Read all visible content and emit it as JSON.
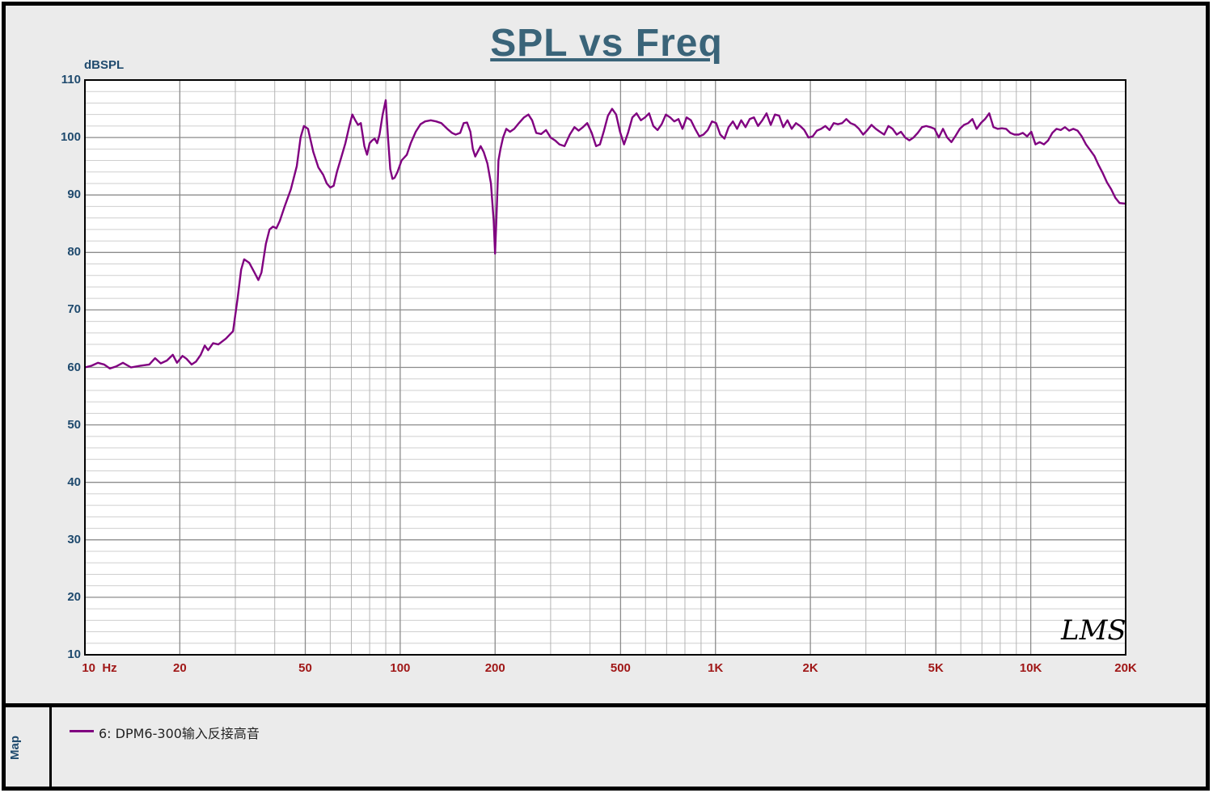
{
  "chart_data": {
    "type": "line",
    "title": "SPL vs Freq",
    "ylabel": "dBSPL",
    "xlabel": "",
    "x_scale": "log",
    "xlim": [
      10,
      20000
    ],
    "ylim": [
      10,
      110
    ],
    "yticks": [
      "110",
      "100",
      "90",
      "80",
      "70",
      "60",
      "50",
      "40",
      "30",
      "20",
      "10"
    ],
    "xticks": [
      {
        "value": 10,
        "label": "10  Hz"
      },
      {
        "value": 20,
        "label": "20"
      },
      {
        "value": 50,
        "label": "50"
      },
      {
        "value": 100,
        "label": "100"
      },
      {
        "value": 200,
        "label": "200"
      },
      {
        "value": 500,
        "label": "500"
      },
      {
        "value": 1000,
        "label": "1K"
      },
      {
        "value": 2000,
        "label": "2K"
      },
      {
        "value": 5000,
        "label": "5K"
      },
      {
        "value": 10000,
        "label": "10K"
      },
      {
        "value": 20000,
        "label": "20K"
      }
    ],
    "grid": true,
    "series": [
      {
        "name": "6: DPM6-300输入反接高音",
        "color": "#800080",
        "points": [
          [
            10,
            60
          ],
          [
            10.5,
            60.3
          ],
          [
            11,
            60.8
          ],
          [
            11.5,
            60.5
          ],
          [
            12,
            59.8
          ],
          [
            12.6,
            60.2
          ],
          [
            13.2,
            60.8
          ],
          [
            14,
            60
          ],
          [
            15,
            60.3
          ],
          [
            16,
            60.5
          ],
          [
            16.7,
            61.6
          ],
          [
            17.4,
            60.7
          ],
          [
            18.2,
            61.2
          ],
          [
            19,
            62.2
          ],
          [
            19.6,
            60.8
          ],
          [
            20.4,
            62
          ],
          [
            21,
            61.5
          ],
          [
            21.8,
            60.5
          ],
          [
            22.5,
            61
          ],
          [
            23.3,
            62.2
          ],
          [
            24,
            63.8
          ],
          [
            24.6,
            63
          ],
          [
            25.5,
            64.2
          ],
          [
            26.5,
            64
          ],
          [
            28,
            65
          ],
          [
            29.5,
            66.3
          ],
          [
            30.5,
            72
          ],
          [
            31.3,
            77
          ],
          [
            32,
            78.8
          ],
          [
            33.2,
            78.2
          ],
          [
            34.5,
            76.5
          ],
          [
            35.5,
            75.2
          ],
          [
            36.3,
            76.5
          ],
          [
            37.5,
            81.5
          ],
          [
            38.5,
            84
          ],
          [
            39.5,
            84.5
          ],
          [
            40.5,
            84.2
          ],
          [
            41.5,
            85.5
          ],
          [
            43,
            88
          ],
          [
            45,
            91
          ],
          [
            47,
            95
          ],
          [
            48.3,
            100
          ],
          [
            49.5,
            102
          ],
          [
            51,
            101.5
          ],
          [
            53,
            97.5
          ],
          [
            55,
            94.8
          ],
          [
            57,
            93.5
          ],
          [
            58.5,
            92
          ],
          [
            60,
            91.3
          ],
          [
            61.5,
            91.6
          ],
          [
            63,
            94
          ],
          [
            65,
            96.5
          ],
          [
            67,
            99
          ],
          [
            69,
            102
          ],
          [
            70.5,
            104
          ],
          [
            72,
            103
          ],
          [
            73.5,
            102.2
          ],
          [
            75,
            102.5
          ],
          [
            77,
            98.5
          ],
          [
            78.5,
            97
          ],
          [
            80,
            99
          ],
          [
            81.5,
            99.5
          ],
          [
            83,
            99.8
          ],
          [
            84.5,
            99
          ],
          [
            86,
            100.5
          ],
          [
            88,
            104
          ],
          [
            90,
            106.5
          ],
          [
            91.5,
            100
          ],
          [
            93,
            94.5
          ],
          [
            94.5,
            92.8
          ],
          [
            96,
            93
          ],
          [
            98,
            94
          ],
          [
            101,
            96
          ],
          [
            105,
            97
          ],
          [
            108,
            99
          ],
          [
            112,
            101
          ],
          [
            116,
            102.3
          ],
          [
            120,
            102.8
          ],
          [
            125,
            103
          ],
          [
            130,
            102.8
          ],
          [
            135,
            102.5
          ],
          [
            141,
            101.5
          ],
          [
            146,
            100.8
          ],
          [
            150,
            100.5
          ],
          [
            155,
            100.8
          ],
          [
            159,
            102.5
          ],
          [
            163,
            102.6
          ],
          [
            167,
            101
          ],
          [
            170,
            98
          ],
          [
            173,
            96.7
          ],
          [
            176,
            97.5
          ],
          [
            180,
            98.5
          ],
          [
            184,
            97.5
          ],
          [
            189,
            95.5
          ],
          [
            194,
            92
          ],
          [
            198,
            85.5
          ],
          [
            200,
            79.8
          ],
          [
            202,
            86
          ],
          [
            205,
            96
          ],
          [
            208,
            98
          ],
          [
            212,
            100
          ],
          [
            217,
            101.5
          ],
          [
            223,
            101
          ],
          [
            230,
            101.5
          ],
          [
            238,
            102.5
          ],
          [
            247,
            103.5
          ],
          [
            255,
            104
          ],
          [
            262,
            103
          ],
          [
            270,
            100.8
          ],
          [
            280,
            100.6
          ],
          [
            290,
            101.3
          ],
          [
            300,
            100
          ],
          [
            310,
            99.5
          ],
          [
            320,
            98.8
          ],
          [
            332,
            98.5
          ],
          [
            345,
            100.5
          ],
          [
            357,
            101.8
          ],
          [
            368,
            101.2
          ],
          [
            380,
            101.8
          ],
          [
            392,
            102.5
          ],
          [
            405,
            100.8
          ],
          [
            418,
            98.5
          ],
          [
            430,
            98.8
          ],
          [
            443,
            101.2
          ],
          [
            456,
            103.8
          ],
          [
            470,
            105
          ],
          [
            484,
            104
          ],
          [
            498,
            101
          ],
          [
            513,
            98.8
          ],
          [
            528,
            100.8
          ],
          [
            545,
            103.5
          ],
          [
            562,
            104.2
          ],
          [
            580,
            103
          ],
          [
            598,
            103.5
          ],
          [
            616,
            104.2
          ],
          [
            635,
            102
          ],
          [
            655,
            101.3
          ],
          [
            675,
            102.3
          ],
          [
            696,
            104
          ],
          [
            718,
            103.5
          ],
          [
            740,
            102.8
          ],
          [
            763,
            103.2
          ],
          [
            786,
            101.5
          ],
          [
            810,
            103.5
          ],
          [
            836,
            103
          ],
          [
            862,
            101.5
          ],
          [
            889,
            100.2
          ],
          [
            916,
            100.5
          ],
          [
            945,
            101.3
          ],
          [
            975,
            102.8
          ],
          [
            1005,
            102.5
          ],
          [
            1036,
            100.5
          ],
          [
            1068,
            99.8
          ],
          [
            1101,
            101.8
          ],
          [
            1136,
            102.8
          ],
          [
            1171,
            101.5
          ],
          [
            1207,
            103
          ],
          [
            1245,
            101.8
          ],
          [
            1284,
            103.2
          ],
          [
            1324,
            103.5
          ],
          [
            1365,
            102
          ],
          [
            1408,
            103
          ],
          [
            1452,
            104.2
          ],
          [
            1497,
            102.2
          ],
          [
            1544,
            104
          ],
          [
            1592,
            103.8
          ],
          [
            1641,
            101.8
          ],
          [
            1692,
            103
          ],
          [
            1745,
            101.5
          ],
          [
            1800,
            102.5
          ],
          [
            1856,
            102
          ],
          [
            1913,
            101.3
          ],
          [
            1973,
            100
          ],
          [
            2034,
            100.2
          ],
          [
            2098,
            101.2
          ],
          [
            2163,
            101.5
          ],
          [
            2230,
            102
          ],
          [
            2300,
            101.3
          ],
          [
            2372,
            102.5
          ],
          [
            2446,
            102.3
          ],
          [
            2522,
            102.5
          ],
          [
            2600,
            103.2
          ],
          [
            2681,
            102.5
          ],
          [
            2765,
            102.2
          ],
          [
            2851,
            101.5
          ],
          [
            2940,
            100.5
          ],
          [
            3032,
            101.3
          ],
          [
            3126,
            102.2
          ],
          [
            3224,
            101.5
          ],
          [
            3324,
            101
          ],
          [
            3428,
            100.5
          ],
          [
            3535,
            102
          ],
          [
            3645,
            101.5
          ],
          [
            3758,
            100.5
          ],
          [
            3875,
            101
          ],
          [
            3996,
            100
          ],
          [
            4121,
            99.5
          ],
          [
            4249,
            100
          ],
          [
            4382,
            100.8
          ],
          [
            4518,
            101.8
          ],
          [
            4659,
            102
          ],
          [
            4804,
            101.8
          ],
          [
            4954,
            101.5
          ],
          [
            5108,
            100
          ],
          [
            5268,
            101.5
          ],
          [
            5432,
            100
          ],
          [
            5601,
            99.2
          ],
          [
            5776,
            100.3
          ],
          [
            5956,
            101.5
          ],
          [
            6142,
            102.2
          ],
          [
            6333,
            102.5
          ],
          [
            6531,
            103.2
          ],
          [
            6735,
            101.5
          ],
          [
            6945,
            102.5
          ],
          [
            7161,
            103.2
          ],
          [
            7385,
            104.2
          ],
          [
            7615,
            101.8
          ],
          [
            7853,
            101.5
          ],
          [
            8098,
            101.6
          ],
          [
            8350,
            101.5
          ],
          [
            8611,
            100.8
          ],
          [
            8879,
            100.5
          ],
          [
            9156,
            100.5
          ],
          [
            9442,
            100.8
          ],
          [
            9736,
            100.2
          ],
          [
            10040,
            101
          ],
          [
            10353,
            98.8
          ],
          [
            10676,
            99.2
          ],
          [
            11009,
            98.8
          ],
          [
            11352,
            99.5
          ],
          [
            11706,
            100.8
          ],
          [
            12071,
            101.5
          ],
          [
            12448,
            101.3
          ],
          [
            12836,
            101.8
          ],
          [
            13237,
            101.2
          ],
          [
            13649,
            101.5
          ],
          [
            14075,
            101.2
          ],
          [
            14514,
            100.2
          ],
          [
            14967,
            98.8
          ],
          [
            15434,
            97.8
          ],
          [
            15915,
            96.8
          ],
          [
            16411,
            95.2
          ],
          [
            16923,
            93.8
          ],
          [
            17451,
            92.2
          ],
          [
            17995,
            91
          ],
          [
            18556,
            89.5
          ],
          [
            19135,
            88.6
          ],
          [
            20000,
            88.5
          ]
        ]
      }
    ]
  },
  "watermark": "LMS",
  "legend": {
    "tab_label": "Map",
    "entries": [
      {
        "label": "6: DPM6-300输入反接高音",
        "color": "#800080"
      }
    ]
  }
}
